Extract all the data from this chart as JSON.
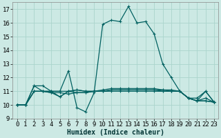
{
  "title": "",
  "xlabel": "Humidex (Indice chaleur)",
  "ylabel": "",
  "xlim": [
    -0.5,
    23.5
  ],
  "ylim": [
    9,
    17.5
  ],
  "yticks": [
    9,
    10,
    11,
    12,
    13,
    14,
    15,
    16,
    17
  ],
  "xticks": [
    0,
    1,
    2,
    3,
    4,
    5,
    6,
    7,
    8,
    9,
    10,
    11,
    12,
    13,
    14,
    15,
    16,
    17,
    18,
    19,
    20,
    21,
    22,
    23
  ],
  "bg_color": "#cce9e4",
  "grid_color": "#aad4cc",
  "line_color": "#006060",
  "lines": [
    [
      10.0,
      10.0,
      11.0,
      11.0,
      11.0,
      11.0,
      12.5,
      9.8,
      9.5,
      10.9,
      15.9,
      16.2,
      16.1,
      17.2,
      16.0,
      16.1,
      15.2,
      13.0,
      12.0,
      11.0,
      10.5,
      10.3,
      11.0,
      10.2
    ],
    [
      10.0,
      10.0,
      11.0,
      11.0,
      11.0,
      11.0,
      11.0,
      10.9,
      10.9,
      11.0,
      11.0,
      11.0,
      11.0,
      11.0,
      11.0,
      11.0,
      11.0,
      11.0,
      11.0,
      11.0,
      10.5,
      10.3,
      10.3,
      10.2
    ],
    [
      10.0,
      10.0,
      11.0,
      11.0,
      10.9,
      10.9,
      10.8,
      10.9,
      10.9,
      11.0,
      11.0,
      11.1,
      11.1,
      11.1,
      11.1,
      11.1,
      11.1,
      11.1,
      11.1,
      11.0,
      10.5,
      10.3,
      10.3,
      10.2
    ],
    [
      10.0,
      10.0,
      11.4,
      11.4,
      11.0,
      10.6,
      11.0,
      11.1,
      11.0,
      11.0,
      11.0,
      11.1,
      11.1,
      11.1,
      11.1,
      11.1,
      11.1,
      11.0,
      11.0,
      11.0,
      10.5,
      10.3,
      10.5,
      10.2
    ],
    [
      10.0,
      10.0,
      11.4,
      11.0,
      10.9,
      10.6,
      11.0,
      11.1,
      11.0,
      11.0,
      11.1,
      11.2,
      11.2,
      11.2,
      11.2,
      11.2,
      11.2,
      11.1,
      11.0,
      11.0,
      10.5,
      10.5,
      11.0,
      10.2
    ]
  ],
  "tick_fontsize": 6.5,
  "xlabel_fontsize": 7.0,
  "marker_size": 2.5,
  "lw": 0.9
}
